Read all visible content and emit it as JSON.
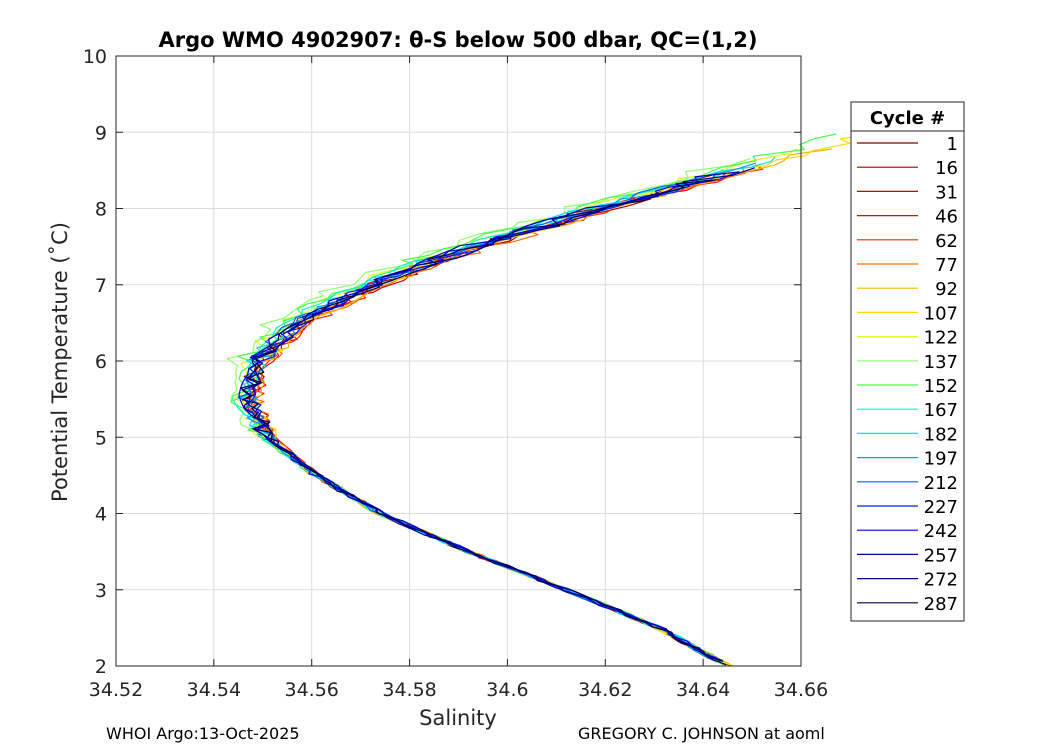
{
  "chart_data": {
    "type": "line",
    "title": "Argo WMO 4902907: θ-S below 500 dbar,  QC=(1,2)",
    "xlabel": "Salinity",
    "ylabel": "Potential Temperature (˚C)",
    "xlim": [
      34.52,
      34.66
    ],
    "ylim": [
      2,
      10
    ],
    "xticks": [
      34.52,
      34.54,
      34.56,
      34.58,
      34.6,
      34.62,
      34.64,
      34.66
    ],
    "xtick_labels": [
      "34.52",
      "34.54",
      "34.56",
      "34.58",
      "34.6",
      "34.62",
      "34.64",
      "34.66"
    ],
    "yticks": [
      2,
      3,
      4,
      5,
      6,
      7,
      8,
      9,
      10
    ],
    "ytick_labels": [
      "2",
      "3",
      "4",
      "5",
      "6",
      "7",
      "8",
      "9",
      "10"
    ],
    "grid": true,
    "legend_title": "Cycle #",
    "legend_position": "outside-right",
    "mean_profile": {
      "theta": [
        2.0,
        2.5,
        3.0,
        3.5,
        4.0,
        4.5,
        5.0,
        5.5,
        6.0,
        6.5,
        7.0,
        7.5,
        8.0,
        8.4
      ],
      "salinity": [
        34.645,
        34.631,
        34.612,
        34.592,
        34.574,
        34.561,
        34.551,
        34.547,
        34.549,
        34.557,
        34.572,
        34.593,
        34.619,
        34.641
      ]
    },
    "series": [
      {
        "name": "1",
        "color": "#7f0000",
        "salinity_offset": 0.0,
        "theta_max": 8.5
      },
      {
        "name": "16",
        "color": "#a30000",
        "salinity_offset": 0.001,
        "theta_max": 8.4
      },
      {
        "name": "31",
        "color": "#c80000",
        "salinity_offset": 0.0015,
        "theta_max": 8.5
      },
      {
        "name": "46",
        "color": "#ed0000",
        "salinity_offset": 0.0015,
        "theta_max": 8.4
      },
      {
        "name": "62",
        "color": "#ff2500",
        "salinity_offset": 0.002,
        "theta_max": 8.6
      },
      {
        "name": "77",
        "color": "#ff6e00",
        "salinity_offset": 0.002,
        "theta_max": 8.6
      },
      {
        "name": "92",
        "color": "#ffb300",
        "salinity_offset": 0.0015,
        "theta_max": 8.8
      },
      {
        "name": "107",
        "color": "#ffdb00",
        "salinity_offset": 0.001,
        "theta_max": 9.1
      },
      {
        "name": "122",
        "color": "#d9ff24",
        "salinity_offset": -0.003,
        "theta_max": 8.8
      },
      {
        "name": "137",
        "color": "#8fff70",
        "salinity_offset": -0.006,
        "theta_max": 8.7
      },
      {
        "name": "152",
        "color": "#47ff4a",
        "salinity_offset": -0.004,
        "theta_max": 9.0
      },
      {
        "name": "167",
        "color": "#00ffc8",
        "salinity_offset": -0.002,
        "theta_max": 8.6
      },
      {
        "name": "182",
        "color": "#00e0ff",
        "salinity_offset": -0.001,
        "theta_max": 8.7
      },
      {
        "name": "197",
        "color": "#00a0ff",
        "salinity_offset": 0.0,
        "theta_max": 8.6
      },
      {
        "name": "212",
        "color": "#0060ff",
        "salinity_offset": -0.0005,
        "theta_max": 8.5
      },
      {
        "name": "227",
        "color": "#0020ff",
        "salinity_offset": 0.0005,
        "theta_max": 8.5
      },
      {
        "name": "242",
        "color": "#0000e0",
        "salinity_offset": 0.0,
        "theta_max": 8.4
      },
      {
        "name": "257",
        "color": "#0000b0",
        "salinity_offset": -0.0005,
        "theta_max": 8.5
      },
      {
        "name": "272",
        "color": "#000080",
        "salinity_offset": 0.0005,
        "theta_max": 8.6
      },
      {
        "name": "287",
        "color": "#000050",
        "salinity_offset": 0.0,
        "theta_max": 8.4
      }
    ]
  },
  "footer": {
    "left": "WHOI Argo:13-Oct-2025",
    "right": "GREGORY C. JOHNSON at aoml"
  }
}
